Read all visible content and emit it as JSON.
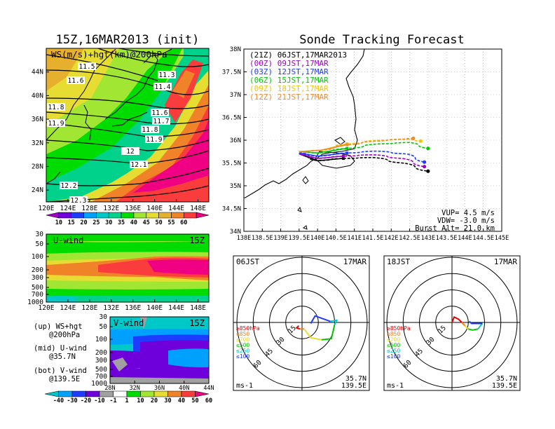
{
  "left_panel": {
    "title": "15Z,16MAR2013 (init)",
    "map": {
      "label": "WS(m/s)+hgt(km)@200hPa",
      "lat_ticks": [
        "44N",
        "40N",
        "36N",
        "32N",
        "28N",
        "24N"
      ],
      "lon_ticks": [
        "120E",
        "124E",
        "128E",
        "132E",
        "136E",
        "140E",
        "144E",
        "148E"
      ],
      "contour_labels": [
        "11.5",
        "11.6",
        "11.8",
        "11.9",
        "11.3",
        "11.4",
        "11.6",
        "11.7",
        "11.8",
        "11.9",
        "12",
        "12.1",
        "12.2",
        "12.3"
      ]
    },
    "colorbar_top": {
      "ticks": [
        "10",
        "15",
        "20",
        "25",
        "30",
        "35",
        "40",
        "45",
        "50",
        "55",
        "60"
      ]
    },
    "uwind": {
      "label": "U-wind",
      "time": "15Z",
      "p_ticks": [
        "30",
        "50",
        "100",
        "200",
        "300",
        "500",
        "700",
        "1000"
      ],
      "lon_ticks": [
        "120E",
        "124E",
        "128E",
        "132E",
        "136E",
        "140E",
        "144E",
        "148E"
      ]
    },
    "vwind": {
      "label": "V-wind",
      "time": "15Z",
      "p_ticks": [
        "30",
        "50",
        "100",
        "200",
        "300",
        "500",
        "700",
        "1000"
      ],
      "lat_ticks": [
        "28N",
        "32N",
        "36N",
        "40N",
        "44N"
      ]
    },
    "notes": [
      {
        "l1": "(up) WS+hgt",
        "l2": "@200hPa"
      },
      {
        "l1": "(mid) U-wind",
        "l2": "@35.7N"
      },
      {
        "l1": "(bot) V-wind",
        "l2": "@139.5E"
      }
    ],
    "colorbar_bottom": {
      "ticks": [
        "-40",
        "-30",
        "-20",
        "-10",
        "-1",
        "1",
        "10",
        "20",
        "30",
        "40",
        "50",
        "60"
      ]
    }
  },
  "tracking": {
    "title": "Sonde Tracking Forecast",
    "lat_ticks": [
      "38N",
      "37.5N",
      "37N",
      "36.5N",
      "36N",
      "35.5N",
      "35N",
      "34.5N",
      "34N"
    ],
    "lon_ticks": [
      "138E",
      "138.5E",
      "139E",
      "139.5E",
      "140E",
      "140.5E",
      "141E",
      "141.5E",
      "142E",
      "142.5E",
      "143E",
      "143.5E",
      "144E",
      "144.5E",
      "145E"
    ],
    "legend": [
      {
        "text": "(21Z) 06JST,17MAR2013",
        "color": "#000000"
      },
      {
        "text": "(00Z) 09JST,17MAR",
        "color": "#a000c8"
      },
      {
        "text": "(03Z) 12JST,17MAR",
        "color": "#1e3cff"
      },
      {
        "text": "(06Z) 15JST,17MAR",
        "color": "#00c800"
      },
      {
        "text": "(09Z) 18JST,17MAR",
        "color": "#f0c800"
      },
      {
        "text": "(12Z) 21JST,17MAR",
        "color": "#f08c28"
      }
    ],
    "params": [
      "VUP= 4.5 m/s",
      "VDW= -3.0 m/s",
      "Burst Alt= 21.0 km"
    ]
  },
  "hodographs": [
    {
      "time": "06JST",
      "date": "17MAR",
      "unit": "ms-1",
      "loc1": "35.7N",
      "loc2": "139.5E",
      "ring_labels": [
        "15",
        "30",
        "45",
        "60"
      ],
      "levels": [
        "≥850hPa",
        "≤850",
        "≤700",
        "≤500",
        "≤250",
        "≤100"
      ]
    },
    {
      "time": "18JST",
      "date": "17MAR",
      "unit": "ms-1",
      "loc1": "35.7N",
      "loc2": "139.5E",
      "ring_labels": [
        "15",
        "30",
        "45",
        "60"
      ],
      "levels": [
        "≥850hPa",
        "≤850",
        "≤700",
        "≤500",
        "≤250",
        "≤100"
      ]
    }
  ],
  "chart_data": [
    {
      "type": "heatmap",
      "title": "15Z,16MAR2013 (init)",
      "label": "WS(m/s)+hgt(km)@200hPa",
      "xlim": [
        120,
        150
      ],
      "ylim": [
        22,
        48
      ],
      "colorbar": [
        10,
        15,
        20,
        25,
        30,
        35,
        40,
        45,
        50,
        55,
        60
      ],
      "colors": [
        "#a000c8",
        "#6e00dc",
        "#1e3cff",
        "#00a0ff",
        "#00c8c8",
        "#00d28c",
        "#00dc00",
        "#a0e632",
        "#e6dc32",
        "#e6af2d",
        "#f08228",
        "#fa3c3c",
        "#f00082"
      ]
    },
    {
      "type": "heatmap",
      "label": "U-wind",
      "xlim": [
        120,
        150
      ],
      "colorbar": [
        -40,
        -30,
        -20,
        -10,
        -1,
        1,
        10,
        20,
        30,
        40,
        50,
        60
      ],
      "colors": [
        "#00c8c8",
        "#00a0ff",
        "#1e3cff",
        "#6e00dc",
        "#a0a0a0",
        "#ffffff",
        "#00dc00",
        "#a0e632",
        "#e6dc32",
        "#f08228",
        "#fa3c3c",
        "#f00082"
      ]
    },
    {
      "type": "heatmap",
      "label": "V-wind",
      "xlim": [
        28,
        44
      ]
    },
    {
      "type": "line",
      "title": "Sonde Tracking Forecast",
      "xlim": [
        138,
        145
      ],
      "ylim": [
        34,
        38
      ],
      "series": [
        {
          "name": "(21Z) 06JST,17MAR2013",
          "color": "#000000",
          "points": [
            [
              139.5,
              35.7
            ],
            [
              140.0,
              35.55
            ],
            [
              140.7,
              35.6
            ],
            [
              141.5,
              35.62
            ],
            [
              142.3,
              35.5
            ],
            [
              143.0,
              35.32
            ]
          ]
        },
        {
          "name": "(00Z) 09JST,17MAR",
          "color": "#a000c8",
          "points": [
            [
              139.5,
              35.7
            ],
            [
              140.0,
              35.6
            ],
            [
              140.7,
              35.65
            ],
            [
              141.5,
              35.68
            ],
            [
              142.3,
              35.6
            ],
            [
              142.9,
              35.42
            ]
          ]
        },
        {
          "name": "(03Z) 12JST,17MAR",
          "color": "#1e3cff",
          "points": [
            [
              139.5,
              35.72
            ],
            [
              140.0,
              35.65
            ],
            [
              140.8,
              35.72
            ],
            [
              141.6,
              35.76
            ],
            [
              142.4,
              35.7
            ],
            [
              142.9,
              35.52
            ]
          ]
        },
        {
          "name": "(06Z) 15JST,17MAR",
          "color": "#00c800",
          "points": [
            [
              139.5,
              35.75
            ],
            [
              140.0,
              35.72
            ],
            [
              140.8,
              35.82
            ],
            [
              141.7,
              35.92
            ],
            [
              142.5,
              35.95
            ],
            [
              143.0,
              35.82
            ]
          ]
        },
        {
          "name": "(09Z) 18JST,17MAR",
          "color": "#f0c800",
          "points": [
            [
              139.5,
              35.75
            ],
            [
              140.1,
              35.78
            ],
            [
              140.8,
              35.92
            ],
            [
              141.7,
              36.0
            ],
            [
              142.4,
              36.02
            ],
            [
              142.8,
              35.98
            ]
          ]
        },
        {
          "name": "(12Z) 21JST,17MAR",
          "color": "#f08c28",
          "points": [
            [
              139.5,
              35.75
            ],
            [
              140.1,
              35.78
            ],
            [
              140.8,
              35.9
            ],
            [
              141.6,
              35.98
            ],
            [
              142.2,
              36.02
            ],
            [
              142.6,
              36.04
            ]
          ]
        }
      ],
      "params": {
        "VUP": "4.5 m/s",
        "VDW": "-3.0 m/s",
        "Burst Alt": "21.0 km"
      }
    },
    {
      "type": "scatter",
      "title": "06JST 17MAR",
      "rings": [
        15,
        30,
        45,
        60
      ],
      "segments": [
        {
          "level": "≥850hPa",
          "color": "#e60000",
          "points": [
            [
              -3,
              -3
            ],
            [
              -5,
              -5
            ],
            [
              -2,
              -6
            ]
          ]
        },
        {
          "level": "≤850",
          "color": "#f08228",
          "points": [
            [
              -2,
              -6
            ],
            [
              2,
              -6
            ]
          ]
        },
        {
          "level": "≤700",
          "color": "#e6dc32",
          "points": [
            [
              2,
              -6
            ],
            [
              8,
              -14
            ],
            [
              18,
              -16
            ]
          ]
        },
        {
          "level": "≤500",
          "color": "#00c800",
          "points": [
            [
              18,
              -16
            ],
            [
              27,
              -15
            ],
            [
              30,
              -2
            ]
          ]
        },
        {
          "level": "≤250",
          "color": "#00c8c8",
          "points": [
            [
              30,
              -2
            ],
            [
              32,
              2
            ],
            [
              26,
              1
            ]
          ]
        },
        {
          "level": "≤100",
          "color": "#1e3cff",
          "points": [
            [
              26,
              1
            ],
            [
              12,
              6
            ],
            [
              8,
              -1
            ]
          ]
        }
      ]
    },
    {
      "type": "scatter",
      "title": "18JST 17MAR",
      "rings": [
        15,
        30,
        45,
        60
      ],
      "segments": [
        {
          "level": "≥850hPa",
          "color": "#e60000",
          "points": [
            [
              0,
              0
            ],
            [
              2,
              5
            ],
            [
              6,
              3
            ],
            [
              9,
              0
            ]
          ]
        },
        {
          "level": "≤850",
          "color": "#f08228",
          "points": [
            [
              9,
              0
            ],
            [
              12,
              -3
            ]
          ]
        },
        {
          "level": "≤700",
          "color": "#e6dc32",
          "points": [
            [
              12,
              -3
            ],
            [
              15,
              -6
            ]
          ]
        },
        {
          "level": "≤500",
          "color": "#00c800",
          "points": [
            [
              15,
              -6
            ],
            [
              19,
              -7
            ],
            [
              24,
              -6
            ]
          ]
        },
        {
          "level": "≤250",
          "color": "#00c8c8",
          "points": [
            [
              24,
              -6
            ],
            [
              27,
              -2
            ],
            [
              28,
              -1
            ]
          ]
        },
        {
          "level": "≤100",
          "color": "#1e3cff",
          "points": [
            [
              28,
              -1
            ],
            [
              18,
              -1
            ],
            [
              16,
              1
            ]
          ]
        }
      ]
    }
  ]
}
